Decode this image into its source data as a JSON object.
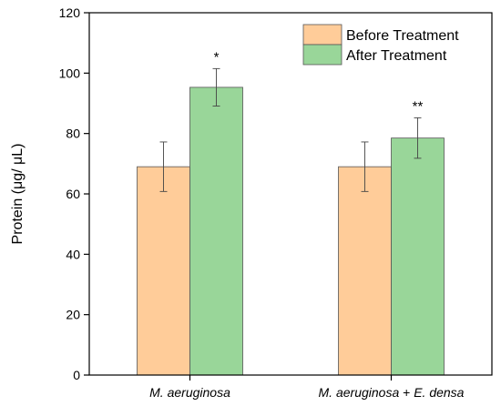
{
  "chart_data": {
    "type": "bar",
    "title": "",
    "xlabel": "",
    "ylabel": "Protein (μg/ μL)",
    "ylim": [
      0,
      120
    ],
    "yticks": [
      0,
      20,
      40,
      60,
      80,
      100,
      120
    ],
    "categories": [
      {
        "label_parts": [
          {
            "text": "M. aeruginosa",
            "italic": true
          }
        ]
      },
      {
        "label_parts": [
          {
            "text": "M. aeruginosa",
            "italic": true
          },
          {
            "text": " + ",
            "italic": false
          },
          {
            "text": "E. densa",
            "italic": true
          }
        ]
      }
    ],
    "series": [
      {
        "name": "Before Treatment",
        "color": "#ffcc99",
        "values": [
          69,
          69
        ],
        "errors": [
          8.2,
          8.2
        ]
      },
      {
        "name": "After Treatment",
        "color": "#99d699",
        "values": [
          95.3,
          78.5
        ],
        "errors": [
          6.2,
          6.7
        ]
      }
    ],
    "annotations": [
      {
        "category": 0,
        "series": 1,
        "text": "*"
      },
      {
        "category": 1,
        "series": 1,
        "text": "**"
      }
    ],
    "legend_position": "top-right",
    "grid": false
  }
}
